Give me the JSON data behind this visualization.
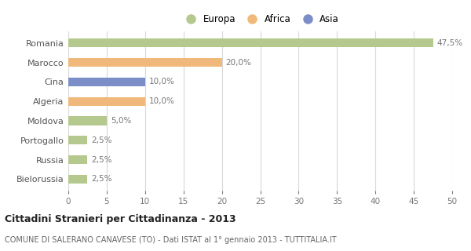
{
  "categories": [
    "Romania",
    "Marocco",
    "Cina",
    "Algeria",
    "Moldova",
    "Portogallo",
    "Russia",
    "Bielorussia"
  ],
  "values": [
    47.5,
    20.0,
    10.0,
    10.0,
    5.0,
    2.5,
    2.5,
    2.5
  ],
  "bar_colors": [
    "#b5c98e",
    "#f0b87a",
    "#7b8ec8",
    "#f0b87a",
    "#b5c98e",
    "#b5c98e",
    "#b5c98e",
    "#b5c98e"
  ],
  "labels": [
    "47,5%",
    "20,0%",
    "10,0%",
    "10,0%",
    "5,0%",
    "2,5%",
    "2,5%",
    "2,5%"
  ],
  "legend_labels": [
    "Europa",
    "Africa",
    "Asia"
  ],
  "legend_colors": [
    "#b5c98e",
    "#f0b87a",
    "#7b8ec8"
  ],
  "xlim": [
    0,
    50
  ],
  "xticks": [
    0,
    5,
    10,
    15,
    20,
    25,
    30,
    35,
    40,
    45,
    50
  ],
  "title": "Cittadini Stranieri per Cittadinanza - 2013",
  "subtitle": "COMUNE DI SALERANO CANAVESE (TO) - Dati ISTAT al 1° gennaio 2013 - TUTTITALIA.IT",
  "background_color": "#ffffff",
  "grid_color": "#d8d8d8",
  "bar_height": 0.45,
  "label_color": "#777777",
  "ytick_color": "#555555"
}
